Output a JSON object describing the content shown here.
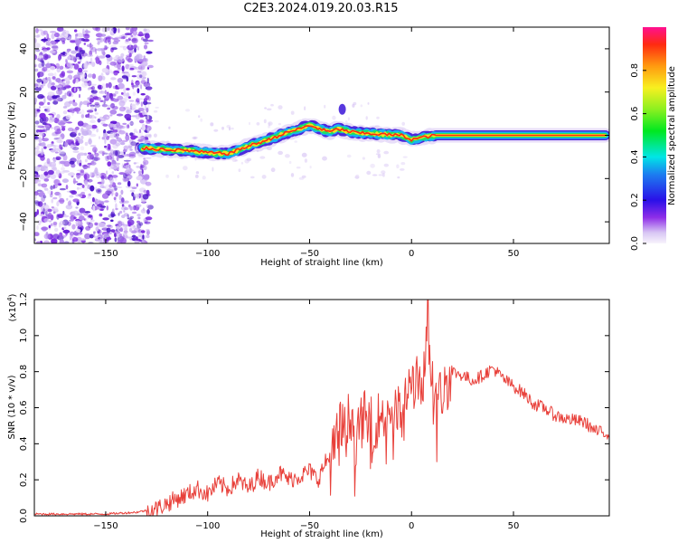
{
  "title": "C2E3.2024.019.20.03.R15",
  "colors": {
    "snr_line": "#e8403a",
    "frame": "#000000"
  },
  "chart_data": [
    {
      "type": "heatmap",
      "xlabel": "Height of straight line (km)",
      "ylabel": "Frequency (Hz)",
      "xlim": [
        -185,
        97
      ],
      "ylim": [
        -50,
        50
      ],
      "xticks": [
        -150,
        -100,
        -50,
        0,
        50
      ],
      "yticks": [
        -40,
        -20,
        0,
        20,
        40
      ],
      "colorbar": {
        "label": "Normalized spectral amplitude",
        "ticks": [
          "0.0",
          "0.2",
          "0.4",
          "0.6",
          "0.8"
        ],
        "range": [
          0,
          1
        ]
      },
      "ridge": {
        "x": [
          -132,
          -120,
          -110,
          -100,
          -90,
          -80,
          -70,
          -62,
          -55,
          -50,
          -45,
          -40,
          -36,
          -32,
          -25,
          -15,
          -5,
          0,
          5,
          12,
          30,
          60,
          95
        ],
        "freq": [
          -6,
          -6.5,
          -7,
          -8,
          -8.5,
          -5,
          -2,
          1,
          3,
          4.5,
          3,
          1.5,
          3,
          2,
          1,
          0.5,
          0,
          -2,
          -1,
          0,
          0,
          0,
          0
        ]
      }
    },
    {
      "type": "line",
      "xlabel": "Height of straight line (km)",
      "ylabel": "SNR (10 * v/v)",
      "yscale_label": "(x10",
      "yscale_exp": "4",
      "xlim": [
        -185,
        97
      ],
      "ylim": [
        0.0,
        1.2
      ],
      "xticks": [
        -150,
        -100,
        -50,
        0,
        50
      ],
      "yticks": [
        "0.0",
        "0.2",
        "0.4",
        "0.6",
        "0.8",
        "1.0",
        "1.2"
      ],
      "series": [
        {
          "x": [
            -185,
            -170,
            -150,
            -135,
            -125,
            -118,
            -110,
            -105,
            -100,
            -95,
            -90,
            -85,
            -80,
            -75,
            -70,
            -65,
            -60,
            -55,
            -50,
            -46,
            -42,
            -38,
            -35,
            -32,
            -30,
            -27,
            -24,
            -20,
            -15,
            -10,
            -5,
            0,
            5,
            8,
            12,
            16,
            20,
            25,
            30,
            35,
            40,
            45,
            50,
            55,
            60,
            65,
            70,
            75,
            80,
            85,
            90,
            95
          ],
          "y": [
            0.01,
            0.01,
            0.01,
            0.02,
            0.04,
            0.08,
            0.12,
            0.15,
            0.12,
            0.18,
            0.15,
            0.2,
            0.15,
            0.22,
            0.18,
            0.24,
            0.2,
            0.22,
            0.25,
            0.2,
            0.3,
            0.35,
            0.5,
            0.45,
            0.6,
            0.4,
            0.55,
            0.5,
            0.55,
            0.6,
            0.55,
            0.75,
            0.72,
            1.0,
            0.62,
            0.7,
            0.8,
            0.78,
            0.75,
            0.78,
            0.82,
            0.76,
            0.72,
            0.68,
            0.62,
            0.6,
            0.56,
            0.54,
            0.53,
            0.52,
            0.47,
            0.46
          ]
        }
      ]
    }
  ]
}
